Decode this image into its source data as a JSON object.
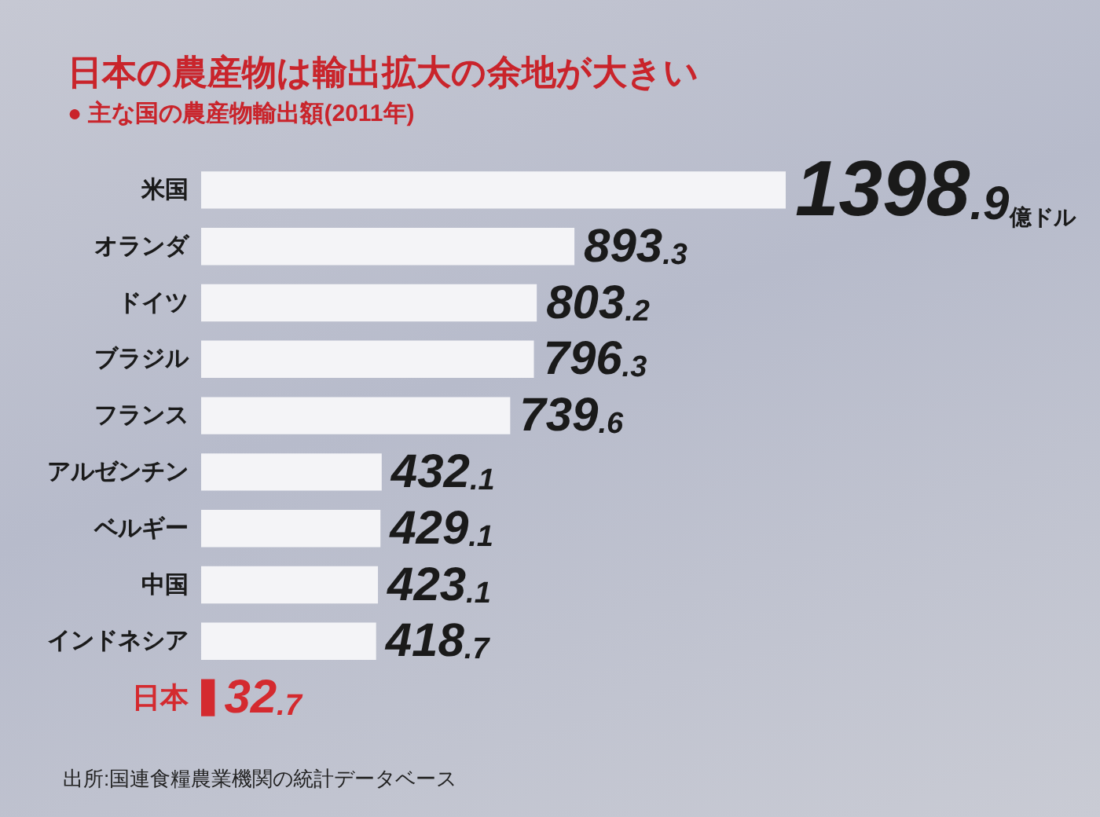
{
  "chart_data": {
    "type": "bar",
    "orientation": "horizontal",
    "title": "日本の農産物は輸出拡大の余地が大きい",
    "subtitle": "● 主な国の農産物輸出額(2011年)",
    "categories": [
      "米国",
      "オランダ",
      "ドイツ",
      "ブラジル",
      "フランス",
      "アルゼンチン",
      "ベルギー",
      "中国",
      "インドネシア",
      "日本"
    ],
    "values": [
      1398.9,
      893.3,
      803.2,
      796.3,
      739.6,
      432.1,
      429.1,
      423.1,
      418.7,
      32.7
    ],
    "colors": [
      "#f4f4f7",
      "#f4f4f7",
      "#f4f4f7",
      "#f4f4f7",
      "#f4f4f7",
      "#f4f4f7",
      "#f4f4f7",
      "#f4f4f7",
      "#f4f4f7",
      "#d42a2f"
    ],
    "value_labels": [
      "1398.9億ドル",
      "893.3",
      "803.2",
      "796.3",
      "739.6",
      "432.1",
      "429.1",
      "423.1",
      "418.7",
      "32.7"
    ],
    "annotations": [
      "出所:国連食糧農業機関の統計データベース"
    ]
  }
}
